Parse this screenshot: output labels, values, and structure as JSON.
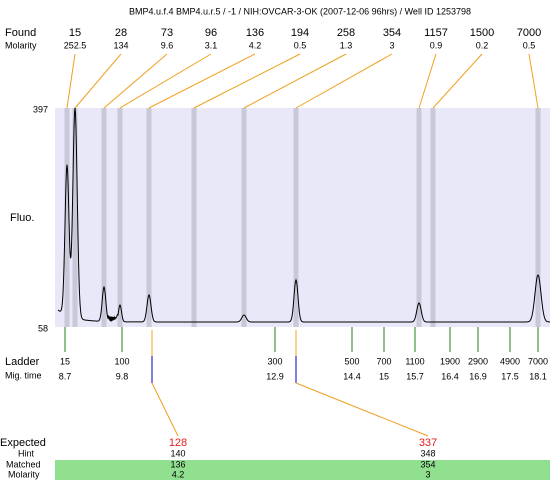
{
  "title": "BMP4.u.f.4  BMP4.u.r.5 / -1 / NIH:OVCAR-3-OK (2007-12-06 96hrs) / Well ID 1253798",
  "found": {
    "label": "Found",
    "molarity_label": "Molarity",
    "sizes": [
      15,
      28,
      73,
      96,
      136,
      194,
      258,
      354,
      1157,
      1500,
      7000
    ],
    "molarity": [
      252.5,
      134,
      9.6,
      3.1,
      4.2,
      0.5,
      1.3,
      3,
      0.9,
      0.2,
      0.5
    ]
  },
  "axis": {
    "label": "Fluo.",
    "ylim": [
      58,
      397
    ]
  },
  "ladder": {
    "label": "Ladder",
    "time_label": "Mig. time",
    "sizes": [
      15,
      100,
      300,
      500,
      700,
      1100,
      1900,
      2900,
      4900,
      7000
    ],
    "times": [
      8.7,
      9.8,
      12.9,
      14.4,
      15,
      15.7,
      16.4,
      16.9,
      17.5,
      18.1
    ]
  },
  "expected": {
    "label": "Expected",
    "hint_label": "Hint",
    "matched_label": "Matched",
    "molarity_label": "Molarity",
    "values": [
      128,
      337
    ],
    "hint": [
      140,
      348
    ],
    "matched": [
      136,
      354
    ],
    "molarity": [
      4.2,
      3
    ]
  }
}
